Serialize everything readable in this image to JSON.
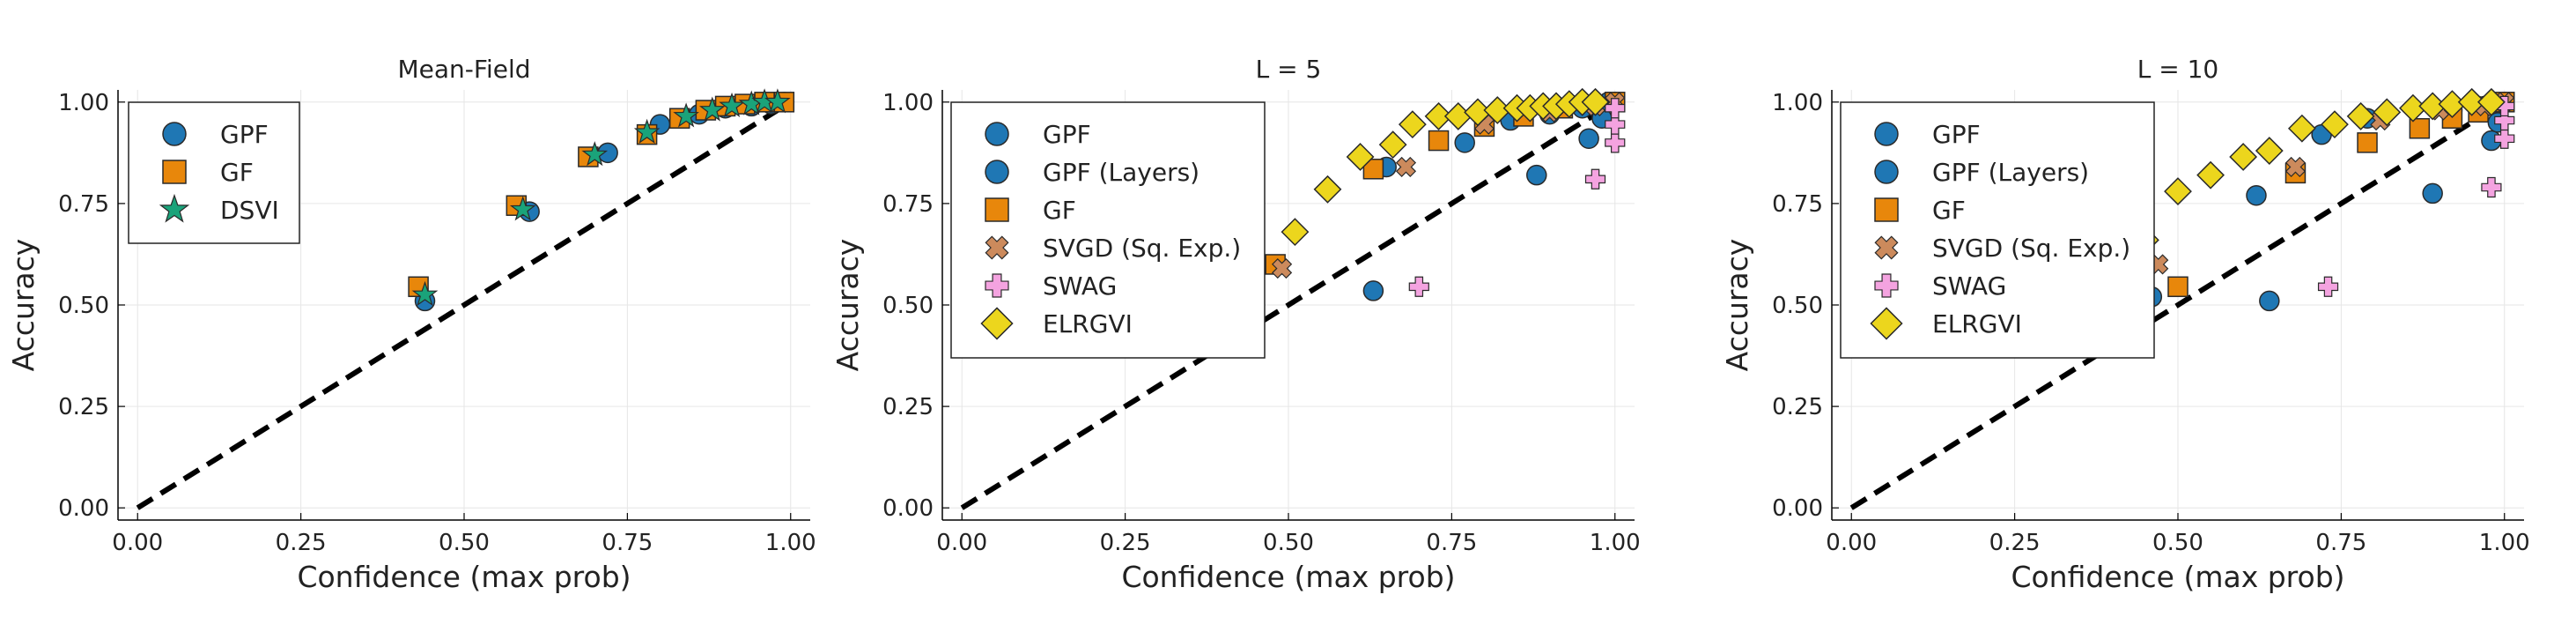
{
  "figure": {
    "xlabel": "Confidence (max prob)",
    "ylabel": "Accuracy",
    "xticks": [
      "0.00",
      "0.25",
      "0.50",
      "0.75",
      "1.00"
    ],
    "yticks": [
      "0.00",
      "0.25",
      "0.50",
      "0.75",
      "1.00"
    ]
  },
  "colors": {
    "GPF": "#1f77b4",
    "GF": "#e8870b",
    "DSVI": "#1aa37a",
    "SVGD": "#cc8a5c",
    "SWAG": "#f4a3e0",
    "ELRGVI": "#ecd61d",
    "diagonal": "#000000"
  },
  "chart_data": [
    {
      "type": "scatter",
      "title": "Mean-Field",
      "xlabel": "Confidence (max prob)",
      "ylabel": "Accuracy",
      "xlim": [
        0,
        1
      ],
      "ylim": [
        0,
        1
      ],
      "legend": "top-left",
      "diagonal": true,
      "series": [
        {
          "name": "GPF",
          "marker": "circle",
          "color": "#1f77b4",
          "points": [
            [
              0.44,
              0.51
            ],
            [
              0.6,
              0.73
            ],
            [
              0.72,
              0.875
            ],
            [
              0.8,
              0.945
            ],
            [
              0.86,
              0.97
            ],
            [
              0.9,
              0.985
            ],
            [
              0.94,
              0.99
            ],
            [
              0.97,
              0.995
            ],
            [
              0.99,
              1.0
            ]
          ]
        },
        {
          "name": "GF",
          "marker": "square",
          "color": "#e8870b",
          "points": [
            [
              0.43,
              0.545
            ],
            [
              0.58,
              0.745
            ],
            [
              0.69,
              0.865
            ],
            [
              0.78,
              0.92
            ],
            [
              0.83,
              0.96
            ],
            [
              0.87,
              0.98
            ],
            [
              0.9,
              0.99
            ],
            [
              0.93,
              0.995
            ],
            [
              0.96,
              1.0
            ],
            [
              0.99,
              1.0
            ]
          ]
        },
        {
          "name": "DSVI",
          "marker": "star",
          "color": "#1aa37a",
          "points": [
            [
              0.44,
              0.525
            ],
            [
              0.59,
              0.735
            ],
            [
              0.7,
              0.87
            ],
            [
              0.78,
              0.925
            ],
            [
              0.84,
              0.965
            ],
            [
              0.88,
              0.98
            ],
            [
              0.91,
              0.99
            ],
            [
              0.94,
              0.995
            ],
            [
              0.96,
              1.0
            ],
            [
              0.98,
              1.0
            ]
          ]
        }
      ]
    },
    {
      "type": "scatter",
      "title": "L = 5",
      "xlabel": "Confidence (max prob)",
      "ylabel": "Accuracy",
      "xlim": [
        0,
        1
      ],
      "ylim": [
        0,
        1
      ],
      "legend": "top-left",
      "diagonal": true,
      "series": [
        {
          "name": "GPF",
          "marker": "circle",
          "color": "#1f77b4",
          "points": [
            [
              0.63,
              0.535
            ],
            [
              0.65,
              0.84
            ],
            [
              0.77,
              0.9
            ],
            [
              0.84,
              0.955
            ],
            [
              0.88,
              0.82
            ],
            [
              0.96,
              0.91
            ],
            [
              0.98,
              0.96
            ],
            [
              1.0,
              1.0
            ]
          ]
        },
        {
          "name": "GPF (Layers)",
          "marker": "circle",
          "color": "#1f77b4",
          "points": [
            [
              0.9,
              0.97
            ],
            [
              0.95,
              0.985
            ],
            [
              0.99,
              1.0
            ]
          ]
        },
        {
          "name": "GF",
          "marker": "square",
          "color": "#e8870b",
          "points": [
            [
              0.48,
              0.6
            ],
            [
              0.63,
              0.835
            ],
            [
              0.73,
              0.905
            ],
            [
              0.8,
              0.94
            ],
            [
              0.86,
              0.965
            ],
            [
              0.92,
              0.985
            ],
            [
              1.0,
              1.0
            ]
          ]
        },
        {
          "name": "SVGD (Sq. Exp.)",
          "marker": "x",
          "color": "#cc8a5c",
          "points": [
            [
              0.49,
              0.59
            ],
            [
              0.68,
              0.84
            ],
            [
              0.8,
              0.945
            ],
            [
              0.9,
              0.975
            ],
            [
              0.97,
              0.99
            ],
            [
              1.0,
              1.0
            ]
          ]
        },
        {
          "name": "SWAG",
          "marker": "plus",
          "color": "#f4a3e0",
          "points": [
            [
              0.7,
              0.545
            ],
            [
              0.97,
              0.81
            ],
            [
              1.0,
              0.9
            ],
            [
              1.0,
              0.945
            ],
            [
              1.0,
              0.985
            ]
          ]
        },
        {
          "name": "ELRGVI",
          "marker": "diamond",
          "color": "#ecd61d",
          "points": [
            [
              0.51,
              0.68
            ],
            [
              0.56,
              0.785
            ],
            [
              0.61,
              0.865
            ],
            [
              0.66,
              0.895
            ],
            [
              0.69,
              0.945
            ],
            [
              0.73,
              0.965
            ],
            [
              0.76,
              0.965
            ],
            [
              0.79,
              0.975
            ],
            [
              0.82,
              0.98
            ],
            [
              0.85,
              0.985
            ],
            [
              0.87,
              0.985
            ],
            [
              0.89,
              0.99
            ],
            [
              0.91,
              0.99
            ],
            [
              0.93,
              0.995
            ],
            [
              0.95,
              1.0
            ],
            [
              0.97,
              1.0
            ]
          ]
        }
      ]
    },
    {
      "type": "scatter",
      "title": "L = 10",
      "xlabel": "Confidence (max prob)",
      "ylabel": "Accuracy",
      "xlim": [
        0,
        1
      ],
      "ylim": [
        0,
        1
      ],
      "legend": "top-left",
      "diagonal": true,
      "series": [
        {
          "name": "GPF",
          "marker": "circle",
          "color": "#1f77b4",
          "points": [
            [
              0.46,
              0.52
            ],
            [
              0.62,
              0.77
            ],
            [
              0.64,
              0.51
            ],
            [
              0.72,
              0.92
            ],
            [
              0.79,
              0.96
            ],
            [
              0.89,
              0.775
            ],
            [
              0.98,
              0.905
            ],
            [
              0.99,
              0.95
            ],
            [
              1.0,
              1.0
            ]
          ]
        },
        {
          "name": "GPF (Layers)",
          "marker": "circle",
          "color": "#1f77b4",
          "points": [
            [
              0.92,
              0.98
            ],
            [
              0.97,
              0.99
            ],
            [
              1.0,
              1.0
            ]
          ]
        },
        {
          "name": "GF",
          "marker": "square",
          "color": "#e8870b",
          "points": [
            [
              0.5,
              0.545
            ],
            [
              0.68,
              0.825
            ],
            [
              0.79,
              0.9
            ],
            [
              0.87,
              0.935
            ],
            [
              0.92,
              0.96
            ],
            [
              0.96,
              0.975
            ],
            [
              1.0,
              1.0
            ]
          ]
        },
        {
          "name": "SVGD (Sq. Exp.)",
          "marker": "x",
          "color": "#cc8a5c",
          "points": [
            [
              0.47,
              0.6
            ],
            [
              0.68,
              0.84
            ],
            [
              0.81,
              0.955
            ],
            [
              0.9,
              0.98
            ],
            [
              0.97,
              0.99
            ],
            [
              1.0,
              1.0
            ]
          ]
        },
        {
          "name": "SWAG",
          "marker": "plus",
          "color": "#f4a3e0",
          "points": [
            [
              0.73,
              0.545
            ],
            [
              0.98,
              0.79
            ],
            [
              1.0,
              0.91
            ],
            [
              1.0,
              0.955
            ],
            [
              1.0,
              0.99
            ]
          ]
        },
        {
          "name": "ELRGVI",
          "marker": "diamond",
          "color": "#ecd61d",
          "points": [
            [
              0.45,
              0.66
            ],
            [
              0.5,
              0.78
            ],
            [
              0.55,
              0.82
            ],
            [
              0.6,
              0.865
            ],
            [
              0.64,
              0.88
            ],
            [
              0.69,
              0.935
            ],
            [
              0.74,
              0.945
            ],
            [
              0.78,
              0.965
            ],
            [
              0.82,
              0.975
            ],
            [
              0.86,
              0.985
            ],
            [
              0.89,
              0.99
            ],
            [
              0.92,
              0.995
            ],
            [
              0.95,
              1.0
            ],
            [
              0.98,
              1.0
            ]
          ]
        }
      ]
    }
  ]
}
